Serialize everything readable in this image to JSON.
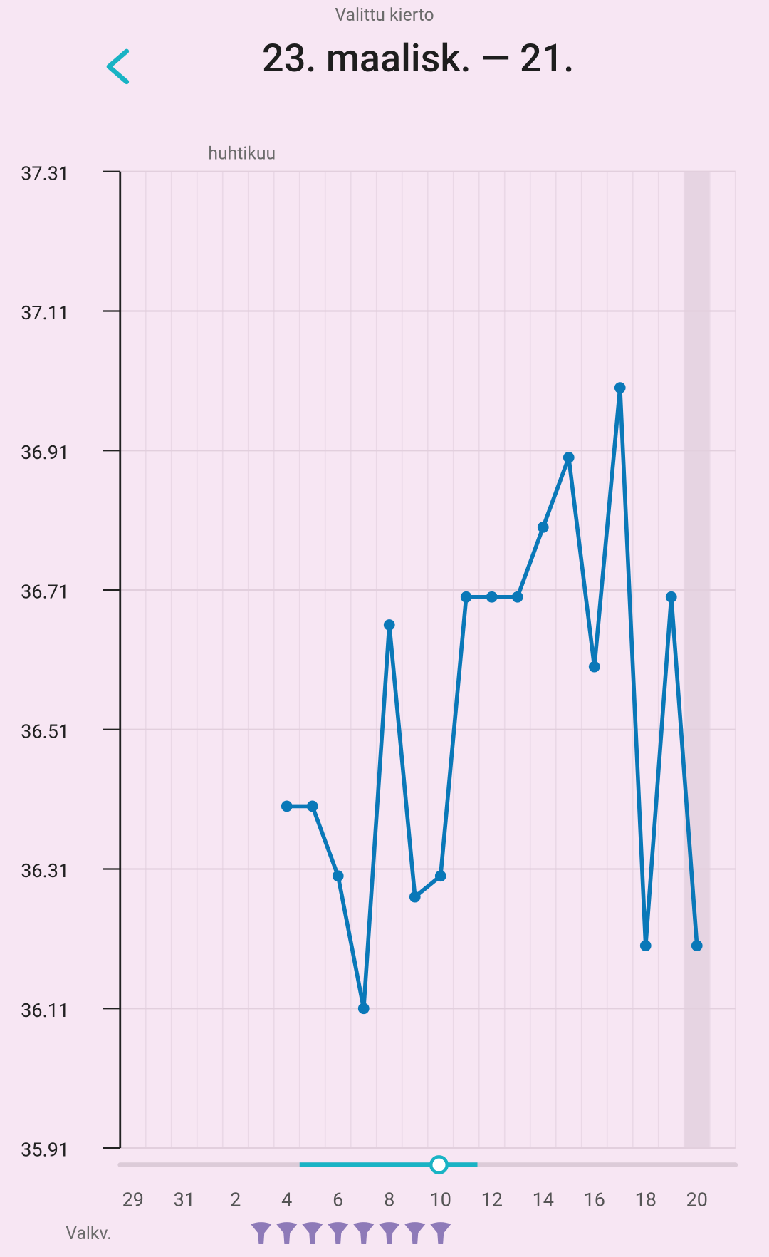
{
  "header": {
    "subtitle": "Valittu kierto",
    "title": "23. maalisk. — 21."
  },
  "chart_data": {
    "type": "line",
    "month_label": "huhtikuu",
    "categories": [
      29,
      null,
      31,
      null,
      2,
      null,
      4,
      null,
      6,
      null,
      8,
      null,
      10,
      null,
      12,
      null,
      14,
      null,
      16,
      null,
      18,
      null,
      20,
      null
    ],
    "series": [
      {
        "color": "#0a78b8",
        "values": [
          null,
          null,
          null,
          null,
          null,
          null,
          36.4,
          36.4,
          36.3,
          36.11,
          36.66,
          36.27,
          36.3,
          36.7,
          36.7,
          36.7,
          36.8,
          36.9,
          36.6,
          37.0,
          36.2,
          36.7,
          36.2,
          null
        ]
      }
    ],
    "ylim": [
      35.91,
      37.31
    ],
    "yticks": [
      35.91,
      36.11,
      36.31,
      36.51,
      36.71,
      36.91,
      37.11,
      37.31
    ],
    "grid": true,
    "highlight": 20,
    "row_label": "Valkv."
  }
}
